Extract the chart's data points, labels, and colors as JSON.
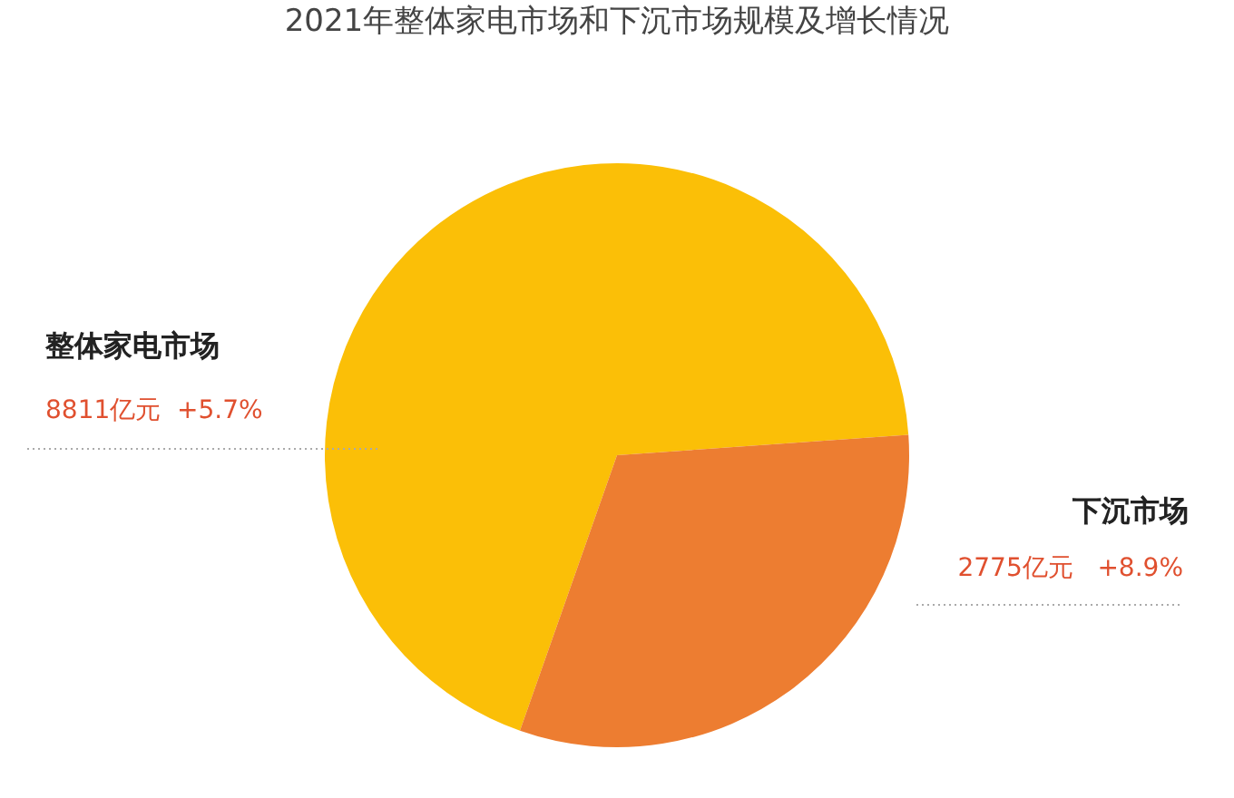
{
  "chart_data": {
    "type": "pie",
    "title": "2021年整体家电市场和下沉市场规模及增长情况",
    "categories": [
      "整体家电市场",
      "下沉市场"
    ],
    "values": [
      68.5,
      31.5
    ],
    "annotations": [
      "8811亿元  +5.7%",
      "2775亿元   +8.9%"
    ],
    "colors": [
      "#fbbf07",
      "#ed7d31"
    ],
    "legend": false
  }
}
